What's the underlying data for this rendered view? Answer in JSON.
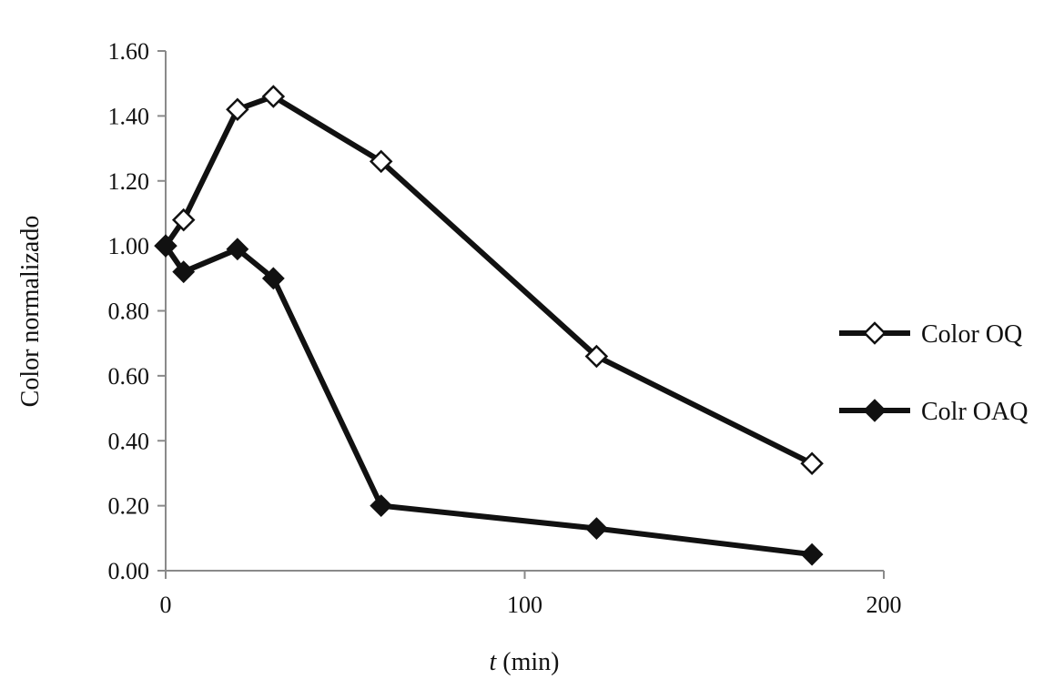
{
  "chart_data": {
    "type": "line",
    "title": "",
    "xlabel_var": "t",
    "xlabel_unit": " (min)",
    "ylabel": "Color normalizado",
    "xlim": [
      0,
      200
    ],
    "ylim": [
      0,
      1.6
    ],
    "x_ticks": [
      0,
      100,
      200
    ],
    "y_ticks": [
      0,
      0.2,
      0.4,
      0.6,
      0.8,
      1.0,
      1.2,
      1.4,
      1.6
    ],
    "y_tick_labels": [
      "0.00",
      "0.20",
      "0.40",
      "0.60",
      "0.80",
      "1.00",
      "1.20",
      "1.40",
      "1.60"
    ],
    "grid": false,
    "legend_position": "right",
    "series": [
      {
        "name": "Color OQ",
        "marker": "diamond-open",
        "x": [
          0,
          5,
          20,
          30,
          60,
          120,
          180
        ],
        "y": [
          1.0,
          1.08,
          1.42,
          1.46,
          1.26,
          0.66,
          0.33
        ]
      },
      {
        "name": "Colr OAQ",
        "marker": "diamond-filled",
        "x": [
          0,
          5,
          20,
          30,
          60,
          120,
          180
        ],
        "y": [
          1.0,
          0.92,
          0.99,
          0.9,
          0.2,
          0.13,
          0.05
        ]
      }
    ]
  }
}
